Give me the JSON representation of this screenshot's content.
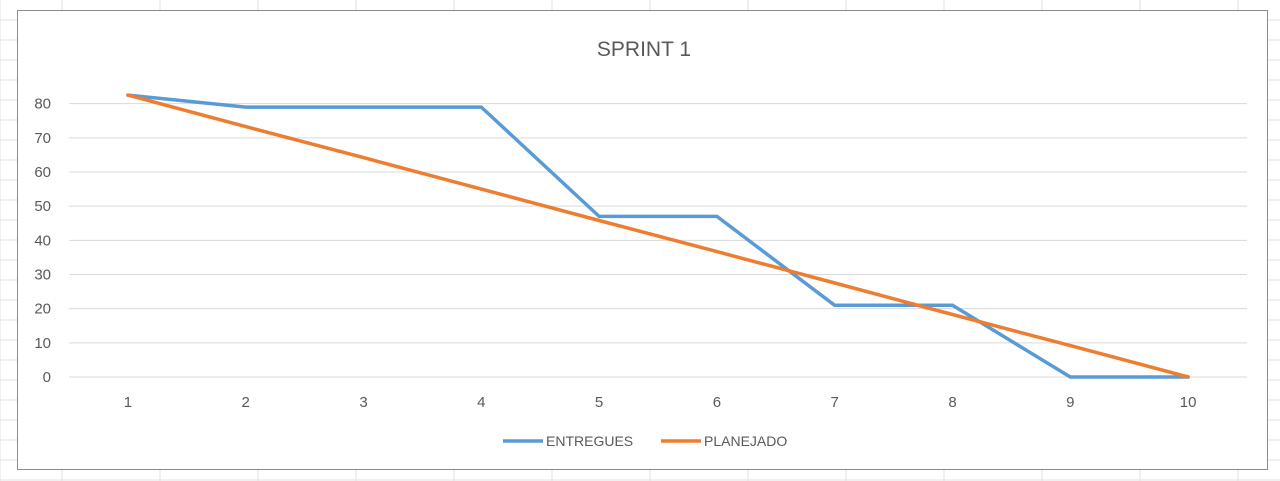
{
  "chart_data": {
    "type": "line",
    "title": "SPRINT 1",
    "xlabel": "",
    "ylabel": "",
    "categories": [
      "1",
      "2",
      "3",
      "4",
      "5",
      "6",
      "7",
      "8",
      "9",
      "10"
    ],
    "y_ticks": [
      0,
      10,
      20,
      30,
      40,
      50,
      60,
      70,
      80
    ],
    "ylim": [
      0,
      90
    ],
    "grid": true,
    "legend_position": "bottom",
    "series": [
      {
        "name": "ENTREGUES",
        "color": "#5b9bd5",
        "values": [
          82.5,
          79,
          79,
          79,
          47,
          47,
          21,
          21,
          0,
          0
        ]
      },
      {
        "name": "PLANEJADO",
        "color": "#ed7d31",
        "values": [
          82.5,
          73.3,
          64.2,
          55,
          45.8,
          36.7,
          27.5,
          18.3,
          9.2,
          0
        ]
      }
    ],
    "colors": {
      "gridline": "#d9d9d9",
      "axis_text": "#595959",
      "sheet_gridline": "#e1e1e1"
    }
  }
}
